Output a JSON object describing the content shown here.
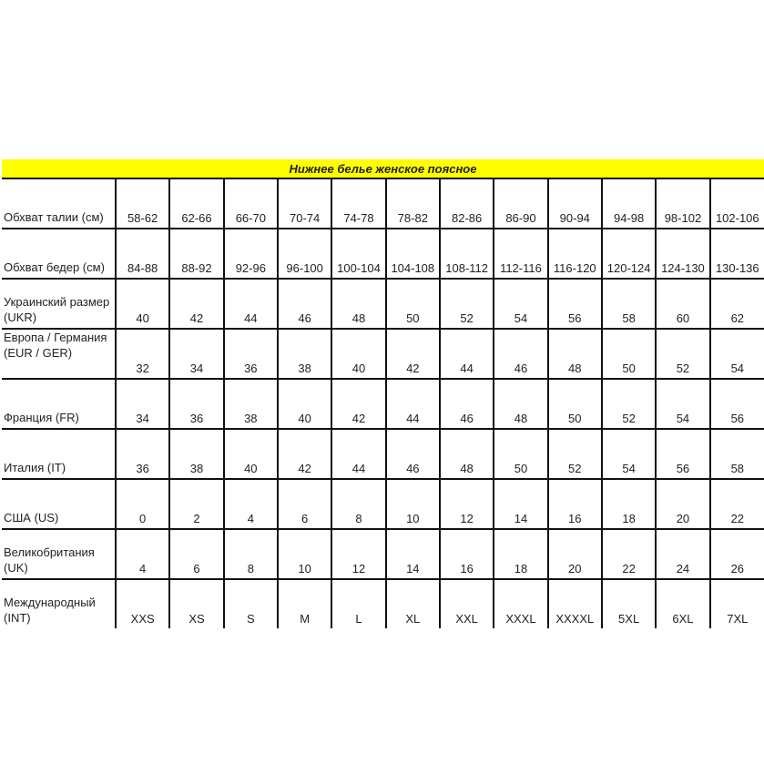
{
  "title": "Нижнее белье женское поясное",
  "colors": {
    "header_bg": "#ffff00"
  },
  "rows": [
    {
      "label": "Обхват талии (см)",
      "values": [
        "58-62",
        "62-66",
        "66-70",
        "70-74",
        "74-78",
        "78-82",
        "82-86",
        "86-90",
        "90-94",
        "94-98",
        "98-102",
        "102-106"
      ]
    },
    {
      "label": "Обхват бедер (см)",
      "values": [
        "84-88",
        "88-92",
        "92-96",
        "96-100",
        "100-104",
        "104-108",
        "108-112",
        "112-116",
        "116-120",
        "120-124",
        "124-130",
        "130-136"
      ]
    },
    {
      "label": "Украинский размер (UKR)",
      "values": [
        "40",
        "42",
        "44",
        "46",
        "48",
        "50",
        "52",
        "54",
        "56",
        "58",
        "60",
        "62"
      ]
    },
    {
      "label": "Европа / Германия (EUR / GER)",
      "values": [
        "32",
        "34",
        "36",
        "38",
        "40",
        "42",
        "44",
        "46",
        "48",
        "50",
        "52",
        "54"
      ]
    },
    {
      "label": "Франция (FR)",
      "values": [
        "34",
        "36",
        "38",
        "40",
        "42",
        "44",
        "46",
        "48",
        "50",
        "52",
        "54",
        "56"
      ]
    },
    {
      "label": "Италия (IT)",
      "values": [
        "36",
        "38",
        "40",
        "42",
        "44",
        "46",
        "48",
        "50",
        "52",
        "54",
        "56",
        "58"
      ]
    },
    {
      "label": "США (US)",
      "values": [
        "0",
        "2",
        "4",
        "6",
        "8",
        "10",
        "12",
        "14",
        "16",
        "18",
        "20",
        "22"
      ]
    },
    {
      "label": "Великобритания (UK)",
      "values": [
        "4",
        "6",
        "8",
        "10",
        "12",
        "14",
        "16",
        "18",
        "20",
        "22",
        "24",
        "26"
      ]
    },
    {
      "label": "Международный (INT)",
      "values": [
        "XXS",
        "XS",
        "S",
        "M",
        "L",
        "XL",
        "XXL",
        "XXXL",
        "XXXXL",
        "5XL",
        "6XL",
        "7XL"
      ]
    }
  ]
}
